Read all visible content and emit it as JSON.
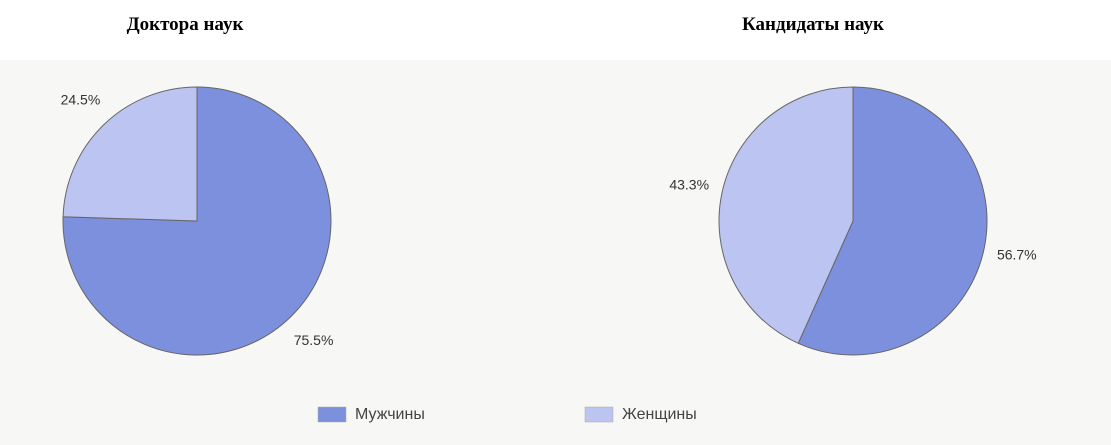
{
  "chart_data": [
    {
      "type": "pie",
      "title": "Доктора наук",
      "categories": [
        "Мужчины",
        "Женщины"
      ],
      "values": [
        75.5,
        24.5
      ],
      "value_labels": [
        "75.5%",
        "24.5%"
      ],
      "colors": [
        "#7d90dd",
        "#bcc5f1"
      ]
    },
    {
      "type": "pie",
      "title": "Кандидаты наук",
      "categories": [
        "Мужчины",
        "Женщины"
      ],
      "values": [
        56.7,
        43.3
      ],
      "value_labels": [
        "56.7%",
        "43.3%"
      ],
      "colors": [
        "#7d90dd",
        "#bcc5f1"
      ]
    }
  ]
}
